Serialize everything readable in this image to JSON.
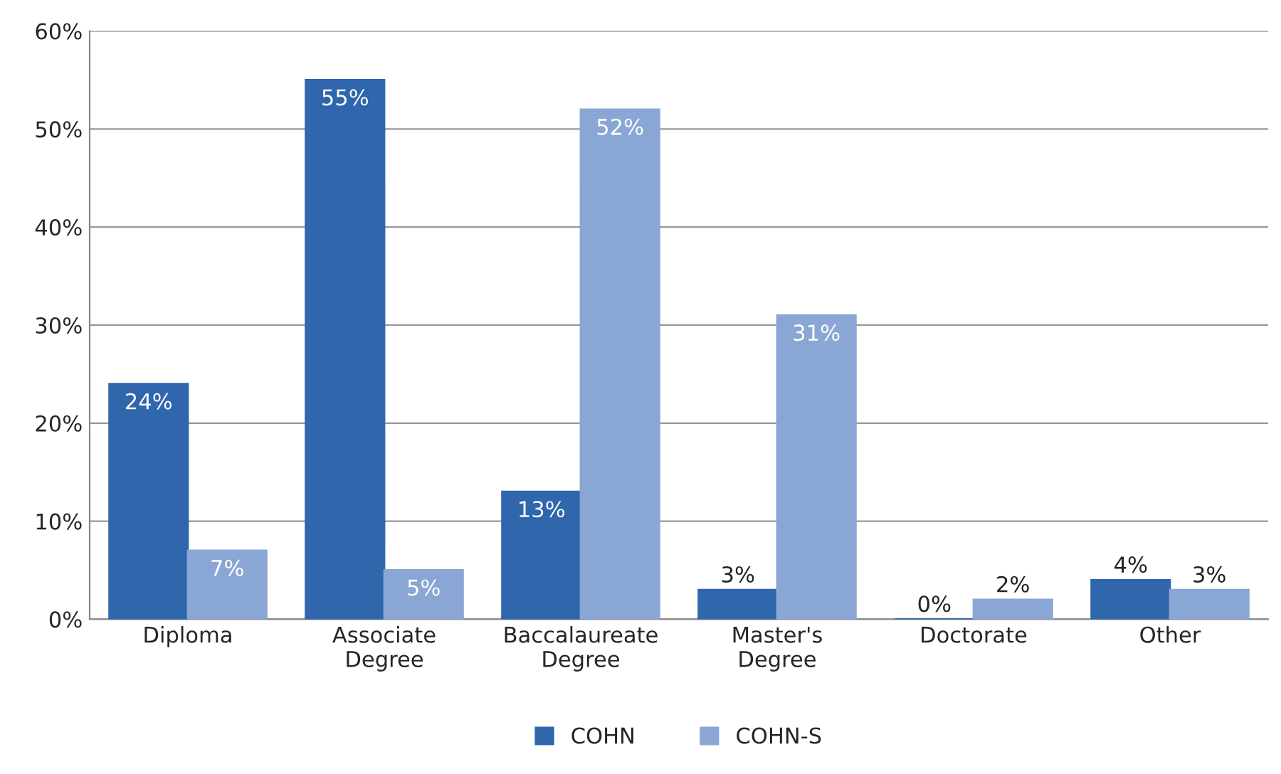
{
  "chart_data": {
    "type": "bar",
    "categories": [
      "Diploma",
      "Associate\nDegree",
      "Baccalaureate\nDegree",
      "Master's\nDegree",
      "Doctorate",
      "Other"
    ],
    "series": [
      {
        "name": "COHN",
        "color": "#2f66ac",
        "values": [
          24,
          55,
          13,
          3,
          0,
          4
        ],
        "value_labels": [
          "24%",
          "55%",
          "13%",
          "3%",
          "0%",
          "4%"
        ]
      },
      {
        "name": "COHN-S",
        "color": "#8aa6d4",
        "values": [
          7,
          5,
          52,
          31,
          2,
          3
        ],
        "value_labels": [
          "7%",
          "5%",
          "52%",
          "31%",
          "2%",
          "3%"
        ]
      }
    ],
    "ylim": [
      0,
      60
    ],
    "yticks": [
      {
        "value": 0,
        "label": "0%"
      },
      {
        "value": 10,
        "label": "10%"
      },
      {
        "value": 20,
        "label": "20%"
      },
      {
        "value": 30,
        "label": "30%"
      },
      {
        "value": 40,
        "label": "40%"
      },
      {
        "value": 50,
        "label": "50%"
      },
      {
        "value": 60,
        "label": "60%"
      }
    ],
    "grid": "y",
    "legend": "bottom"
  }
}
